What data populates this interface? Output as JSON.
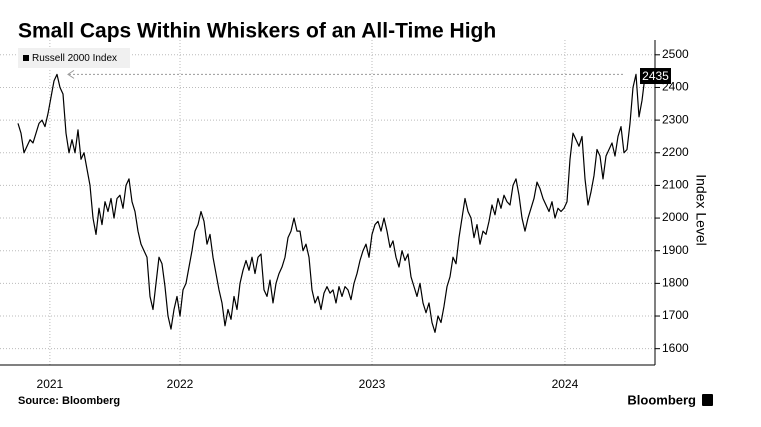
{
  "chart_data": {
    "type": "line",
    "title": "Small Caps Within Whiskers of an All-Time High",
    "y_axis_label": "Index Level",
    "source": "Source: Bloomberg",
    "brand": "Bloomberg",
    "legend": "top-left",
    "grid": true,
    "xlim": [
      2021.65,
      2024.994
    ],
    "xticks": [
      {
        "value": 2021.82,
        "label": "2021"
      },
      {
        "value": 2022.514,
        "label": "2022"
      },
      {
        "value": 2023.538,
        "label": "2023"
      },
      {
        "value": 2024.567,
        "label": "2024"
      }
    ],
    "ylim": [
      1550,
      2530
    ],
    "yticks": [
      1600,
      1700,
      1800,
      1900,
      2000,
      2100,
      2200,
      2300,
      2400,
      2500
    ],
    "x": [
      2021.65,
      2021.666,
      2021.682,
      2021.698,
      2021.714,
      2021.73,
      2021.746,
      2021.762,
      2021.778,
      2021.794,
      2021.81,
      2021.826,
      2021.842,
      2021.858,
      2021.874,
      2021.89,
      2021.906,
      2021.922,
      2021.938,
      2021.954,
      2021.97,
      2021.986,
      2022.002,
      2022.018,
      2022.034,
      2022.05,
      2022.066,
      2022.082,
      2022.098,
      2022.114,
      2022.13,
      2022.146,
      2022.162,
      2022.178,
      2022.194,
      2022.21,
      2022.226,
      2022.242,
      2022.258,
      2022.274,
      2022.29,
      2022.306,
      2022.322,
      2022.338,
      2022.354,
      2022.37,
      2022.386,
      2022.402,
      2022.418,
      2022.434,
      2022.45,
      2022.466,
      2022.482,
      2022.498,
      2022.514,
      2022.53,
      2022.546,
      2022.562,
      2022.578,
      2022.594,
      2022.61,
      2022.626,
      2022.642,
      2022.658,
      2022.674,
      2022.69,
      2022.706,
      2022.722,
      2022.738,
      2022.754,
      2022.77,
      2022.786,
      2022.802,
      2022.818,
      2022.834,
      2022.85,
      2022.866,
      2022.882,
      2022.898,
      2022.914,
      2022.93,
      2022.946,
      2022.962,
      2022.978,
      2022.994,
      2023.01,
      2023.026,
      2023.042,
      2023.058,
      2023.074,
      2023.09,
      2023.106,
      2023.122,
      2023.138,
      2023.154,
      2023.17,
      2023.186,
      2023.202,
      2023.218,
      2023.234,
      2023.25,
      2023.266,
      2023.282,
      2023.298,
      2023.314,
      2023.33,
      2023.346,
      2023.362,
      2023.378,
      2023.394,
      2023.41,
      2023.426,
      2023.442,
      2023.458,
      2023.474,
      2023.49,
      2023.506,
      2023.522,
      2023.538,
      2023.554,
      2023.57,
      2023.586,
      2023.602,
      2023.618,
      2023.634,
      2023.65,
      2023.666,
      2023.682,
      2023.698,
      2023.714,
      2023.73,
      2023.746,
      2023.762,
      2023.778,
      2023.794,
      2023.81,
      2023.826,
      2023.842,
      2023.858,
      2023.874,
      2023.89,
      2023.906,
      2023.922,
      2023.938,
      2023.954,
      2023.97,
      2023.986,
      2024.002,
      2024.018,
      2024.034,
      2024.05,
      2024.066,
      2024.082,
      2024.098,
      2024.114,
      2024.13,
      2024.146,
      2024.162,
      2024.178,
      2024.194,
      2024.21,
      2024.226,
      2024.242,
      2024.258,
      2024.274,
      2024.29,
      2024.306,
      2024.322,
      2024.338,
      2024.354,
      2024.37,
      2024.386,
      2024.402,
      2024.418,
      2024.434,
      2024.45,
      2024.466,
      2024.482,
      2024.498,
      2024.514,
      2024.53,
      2024.546,
      2024.562,
      2024.578,
      2024.594,
      2024.61,
      2024.626,
      2024.642,
      2024.658,
      2024.674,
      2024.69,
      2024.706,
      2024.722,
      2024.738,
      2024.754,
      2024.77,
      2024.786,
      2024.802,
      2024.818,
      2024.834,
      2024.85,
      2024.866,
      2024.882,
      2024.898,
      2024.914,
      2024.93,
      2024.946,
      2024.962,
      2024.978,
      2024.994
    ],
    "series": [
      {
        "name": "Russell 2000 Index",
        "color": "#000000",
        "values": [
          2290,
          2260,
          2200,
          2220,
          2240,
          2230,
          2260,
          2290,
          2300,
          2280,
          2320,
          2370,
          2420,
          2440,
          2400,
          2380,
          2260,
          2200,
          2240,
          2200,
          2270,
          2180,
          2200,
          2150,
          2100,
          2000,
          1950,
          2030,
          1980,
          2050,
          2020,
          2060,
          2000,
          2060,
          2070,
          2030,
          2100,
          2120,
          2050,
          2020,
          1960,
          1920,
          1900,
          1880,
          1760,
          1720,
          1800,
          1880,
          1860,
          1790,
          1700,
          1660,
          1720,
          1760,
          1700,
          1780,
          1800,
          1850,
          1900,
          1960,
          1980,
          2020,
          1990,
          1920,
          1950,
          1880,
          1830,
          1780,
          1740,
          1670,
          1720,
          1690,
          1760,
          1720,
          1800,
          1840,
          1870,
          1840,
          1880,
          1830,
          1880,
          1890,
          1780,
          1760,
          1810,
          1740,
          1800,
          1830,
          1850,
          1880,
          1940,
          1960,
          2000,
          1960,
          1960,
          1900,
          1920,
          1880,
          1780,
          1740,
          1760,
          1720,
          1770,
          1790,
          1770,
          1780,
          1740,
          1790,
          1760,
          1790,
          1780,
          1750,
          1800,
          1830,
          1870,
          1900,
          1920,
          1880,
          1950,
          1980,
          1990,
          1960,
          2000,
          1960,
          1910,
          1930,
          1880,
          1850,
          1900,
          1870,
          1890,
          1820,
          1790,
          1760,
          1800,
          1740,
          1710,
          1740,
          1680,
          1650,
          1700,
          1680,
          1730,
          1790,
          1820,
          1880,
          1860,
          1940,
          2000,
          2060,
          2020,
          2000,
          1940,
          1980,
          1920,
          1960,
          1950,
          1990,
          2040,
          2010,
          2060,
          2030,
          2070,
          2050,
          2040,
          2100,
          2120,
          2070,
          2000,
          1960,
          2000,
          2030,
          2060,
          2110,
          2090,
          2060,
          2040,
          2020,
          2050,
          2000,
          2030,
          2020,
          2030,
          2050,
          2180,
          2260,
          2240,
          2220,
          2250,
          2120,
          2040,
          2080,
          2130,
          2210,
          2190,
          2120,
          2190,
          2210,
          2230,
          2190,
          2250,
          2280,
          2200,
          2210,
          2290,
          2400,
          2440,
          2310,
          2360,
          2435
        ]
      }
    ]
  }
}
